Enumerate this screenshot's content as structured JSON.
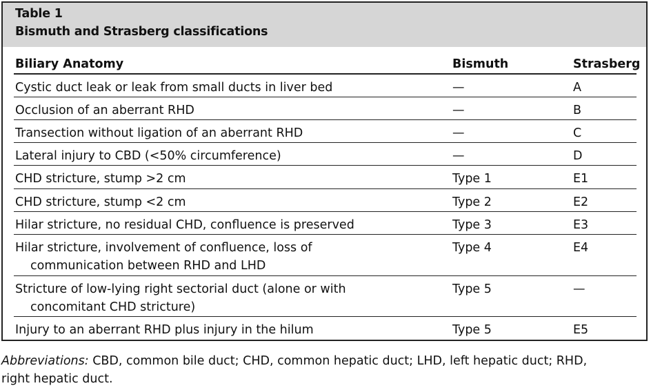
{
  "table": {
    "label": "Table 1",
    "title": "Bismuth and Strasberg classifications",
    "headers": [
      "Biliary Anatomy",
      "Bismuth",
      "Strasberg"
    ],
    "rows": [
      {
        "anatomy": [
          "Cystic duct leak or leak from small ducts in liver bed"
        ],
        "bismuth": "—",
        "strasberg": "A"
      },
      {
        "anatomy": [
          "Occlusion of an aberrant RHD"
        ],
        "bismuth": "—",
        "strasberg": "B"
      },
      {
        "anatomy": [
          "Transection without ligation of an aberrant RHD"
        ],
        "bismuth": "—",
        "strasberg": "C"
      },
      {
        "anatomy": [
          "Lateral injury to CBD (<50% circumference)"
        ],
        "bismuth": "—",
        "strasberg": "D"
      },
      {
        "anatomy": [
          "CHD stricture, stump >2 cm"
        ],
        "bismuth": "Type 1",
        "strasberg": "E1"
      },
      {
        "anatomy": [
          "CHD stricture, stump <2 cm"
        ],
        "bismuth": "Type 2",
        "strasberg": "E2"
      },
      {
        "anatomy": [
          "Hilar stricture, no residual CHD, confluence is preserved"
        ],
        "bismuth": "Type 3",
        "strasberg": "E3"
      },
      {
        "anatomy": [
          "Hilar stricture, involvement of confluence, loss of",
          "communication between RHD and LHD"
        ],
        "bismuth": "Type 4",
        "strasberg": "E4"
      },
      {
        "anatomy": [
          "Stricture of low-lying right sectorial duct (alone or with",
          "concomitant CHD stricture)"
        ],
        "bismuth": "Type 5",
        "strasberg": "—"
      },
      {
        "anatomy": [
          "Injury to an aberrant RHD plus injury in the hilum"
        ],
        "bismuth": "Type 5",
        "strasberg": "E5"
      }
    ]
  },
  "footnote": {
    "label": "Abbreviations:",
    "line1": " CBD, common bile duct; CHD, common hepatic duct; LHD, left hepatic duct; RHD,",
    "line2": "right hepatic duct."
  }
}
